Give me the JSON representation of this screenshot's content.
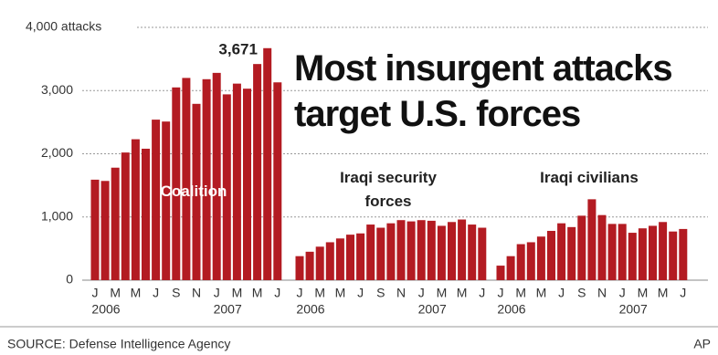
{
  "chart_data": {
    "type": "bar",
    "title": "Most insurgent attacks target U.S. forces",
    "categories": [
      "J",
      null,
      "M",
      null,
      "M",
      null,
      "J",
      null,
      "S",
      null,
      "N",
      null,
      "J",
      null,
      "M",
      null,
      "M",
      null,
      "J"
    ],
    "year_labels": [
      "2006",
      null,
      null,
      null,
      null,
      null,
      null,
      null,
      null,
      null,
      null,
      null,
      "2007",
      null,
      null,
      null,
      null,
      null,
      null
    ],
    "ylim": [
      0,
      4000
    ],
    "yticks": [
      0,
      {
        "value": 1000,
        "label": "1,000"
      },
      {
        "value": 2000,
        "label": "2,000"
      },
      {
        "value": 3000,
        "label": "3,000"
      },
      {
        "value": 4000,
        "label": "4,000 attacks"
      }
    ],
    "grid": true,
    "series": [
      {
        "name": "Coalition",
        "color": "#b31b22",
        "values": [
          1590,
          1570,
          1780,
          2020,
          2230,
          2080,
          2540,
          2510,
          3050,
          3200,
          2790,
          3180,
          3280,
          2940,
          3110,
          3030,
          3420,
          3671,
          3130
        ],
        "value_labels": [
          null,
          null,
          null,
          null,
          null,
          null,
          null,
          null,
          null,
          null,
          null,
          null,
          null,
          null,
          null,
          null,
          null,
          "3,671",
          null
        ]
      },
      {
        "name": "Iraqi security forces",
        "color": "#b31b22",
        "values": [
          380,
          450,
          530,
          600,
          660,
          720,
          740,
          880,
          830,
          900,
          950,
          930,
          950,
          940,
          860,
          920,
          960,
          880,
          830
        ]
      },
      {
        "name": "Iraqi civilians",
        "color": "#b31b22",
        "values": [
          230,
          380,
          570,
          600,
          690,
          780,
          900,
          840,
          1020,
          1280,
          1030,
          890,
          890,
          750,
          820,
          860,
          920,
          770,
          810
        ]
      }
    ],
    "source": "SOURCE: Defense Intelligence Agency",
    "credit": "AP"
  }
}
